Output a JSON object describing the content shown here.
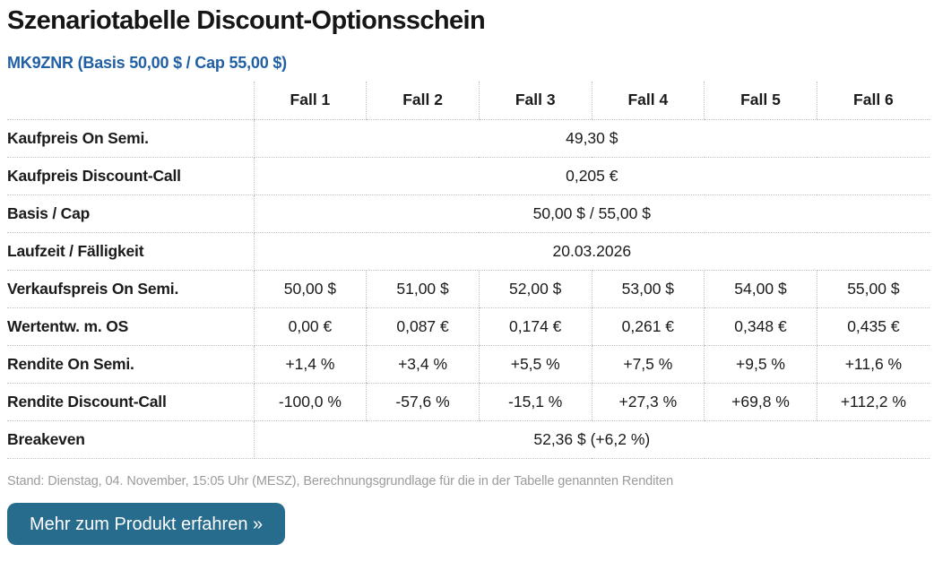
{
  "page": {
    "title": "Szenariotabelle Discount-Optionsschein",
    "subtitle": "MK9ZNR (Basis 50,00 $ / Cap 55,00 $)"
  },
  "table": {
    "column_headers": [
      "",
      "Fall 1",
      "Fall 2",
      "Fall 3",
      "Fall 4",
      "Fall 5",
      "Fall 6"
    ],
    "rows": [
      {
        "label": "Kaufpreis On Semi.",
        "span_value": "49,30 $"
      },
      {
        "label": "Kaufpreis Discount-Call",
        "span_value": "0,205 €"
      },
      {
        "label": "Basis / Cap",
        "span_value": "50,00 $ / 55,00 $"
      },
      {
        "label": "Laufzeit / Fälligkeit",
        "span_value": "20.03.2026"
      },
      {
        "label": "Verkaufspreis On Semi.",
        "values": [
          "50,00 $",
          "51,00 $",
          "52,00 $",
          "53,00 $",
          "54,00 $",
          "55,00 $"
        ]
      },
      {
        "label": "Wertentw. m. OS",
        "values": [
          "0,00 €",
          "0,087 €",
          "0,174 €",
          "0,261 €",
          "0,348 €",
          "0,435 €"
        ]
      },
      {
        "label": "Rendite On Semi.",
        "values": [
          "+1,4 %",
          "+3,4 %",
          "+5,5 %",
          "+7,5 %",
          "+9,5 %",
          "+11,6 %"
        ]
      },
      {
        "label": "Rendite Discount-Call",
        "values": [
          "-100,0 %",
          "-57,6 %",
          "-15,1 %",
          "+27,3 %",
          "+69,8 %",
          "+112,2 %"
        ]
      },
      {
        "label": "Breakeven",
        "span_value": "52,36 $ (+6,2 %)"
      }
    ]
  },
  "footer": {
    "status_line": "Stand: Dienstag, 04. November, 15:05 Uhr (MESZ), Berechnungsgrundlage für die in der Tabelle genannten Renditen"
  },
  "cta": {
    "label": "Mehr zum Produkt erfahren »"
  },
  "colors": {
    "subtitle_blue": "#2160a5",
    "cta_background": "#276b8d",
    "status_gray": "#9b9b9b",
    "table_border": "#c2c2c2",
    "text_black": "#161616"
  }
}
